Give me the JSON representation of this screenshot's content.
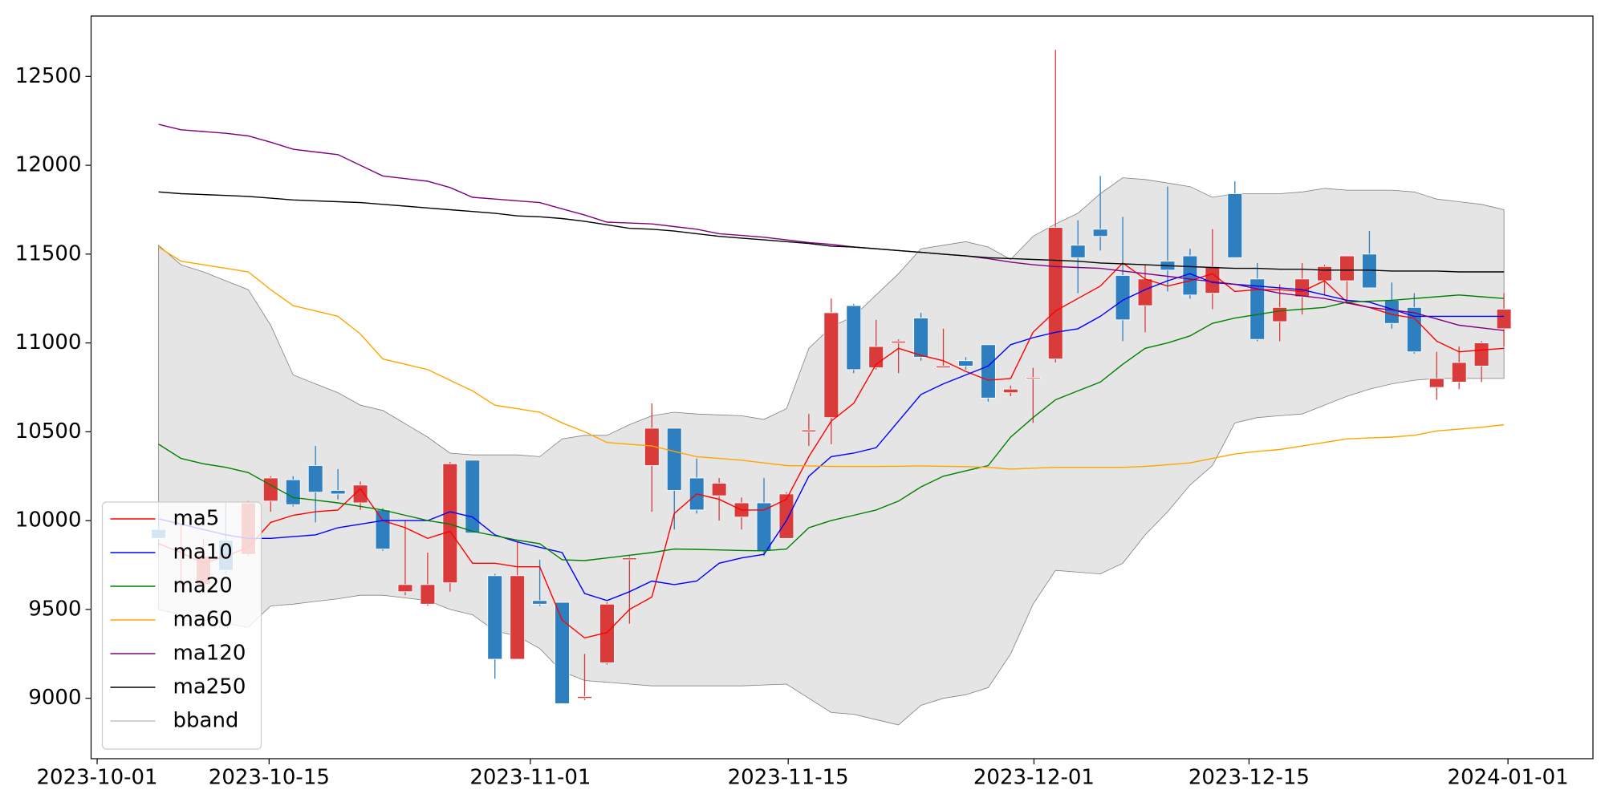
{
  "chart_data": {
    "type": "candlestick",
    "xlim": [
      -3.01,
      63.97
    ],
    "xticks": [
      {
        "value": -2.74,
        "label": "2023-10-01"
      },
      {
        "value": 4.93,
        "label": "2023-10-15"
      },
      {
        "value": 16.58,
        "label": "2023-11-01"
      },
      {
        "value": 28.08,
        "label": "2023-11-15"
      },
      {
        "value": 39.04,
        "label": "2023-12-01"
      },
      {
        "value": 48.63,
        "label": "2023-12-15"
      },
      {
        "value": 60.18,
        "label": "2024-01-01"
      }
    ],
    "ylim": [
      8660,
      12840
    ],
    "yticks": [
      9000,
      9500,
      10000,
      10500,
      11000,
      11500,
      12000,
      12500
    ],
    "up_color": "#d93a3a",
    "down_color": "#2e7fbf",
    "open": [
      9950,
      9640,
      9640,
      9890,
      9810,
      10110,
      10230,
      10310,
      10170,
      10100,
      10060,
      9600,
      9530,
      9650,
      10340,
      9690,
      9220,
      9550,
      9540,
      9000,
      9200,
      9780,
      10310,
      10520,
      10240,
      10140,
      10020,
      10100,
      9900,
      10500,
      10580,
      11210,
      10860,
      11000,
      11140,
      10860,
      10900,
      10990,
      10720,
      10800,
      10910,
      11550,
      11640,
      11380,
      11210,
      11460,
      11490,
      11280,
      11840,
      11360,
      11120,
      11260,
      11350,
      11350,
      11500,
      11240,
      11200,
      10750,
      10780,
      10870,
      11080
    ],
    "high": [
      10050,
      9980,
      9900,
      10100,
      10110,
      10250,
      10250,
      10420,
      10290,
      10220,
      10070,
      10000,
      9820,
      10330,
      10340,
      9700,
      9880,
      9780,
      9540,
      9250,
      9540,
      9800,
      10660,
      10520,
      10350,
      10240,
      10130,
      10240,
      10160,
      10600,
      11250,
      11220,
      11130,
      11020,
      11170,
      11080,
      10920,
      10990,
      10760,
      10860,
      12650,
      11690,
      11940,
      11710,
      11440,
      11880,
      11530,
      11640,
      11910,
      11450,
      11330,
      11450,
      11440,
      11490,
      11630,
      11340,
      11280,
      10950,
      10980,
      11010,
      11280
    ],
    "low": [
      9850,
      9600,
      9600,
      9700,
      9800,
      10050,
      10080,
      9990,
      10120,
      10060,
      9830,
      9580,
      9520,
      9600,
      9930,
      9110,
      9220,
      9520,
      8970,
      8990,
      9190,
      9420,
      10050,
      9950,
      10040,
      10000,
      9950,
      9800,
      9900,
      10420,
      10430,
      10830,
      10850,
      10830,
      10900,
      10860,
      10850,
      10670,
      10700,
      10550,
      10890,
      11280,
      11520,
      11010,
      11060,
      11290,
      11250,
      11190,
      11480,
      11010,
      11010,
      11160,
      11270,
      11220,
      11310,
      11080,
      10940,
      10680,
      10740,
      10780,
      10980
    ],
    "close": [
      9900,
      9660,
      9800,
      9720,
      10100,
      10240,
      10090,
      10160,
      10150,
      10200,
      9840,
      9640,
      9640,
      10320,
      9930,
      9220,
      9690,
      9530,
      8970,
      9010,
      9530,
      9790,
      10520,
      10170,
      10060,
      10210,
      10100,
      9830,
      10150,
      10510,
      11170,
      10850,
      10980,
      11010,
      10920,
      10870,
      10870,
      10690,
      10740,
      10805,
      11650,
      11480,
      11600,
      11130,
      11360,
      11410,
      11270,
      11430,
      11480,
      11020,
      11200,
      11360,
      11430,
      11490,
      11310,
      11110,
      10950,
      10800,
      10890,
      11000,
      11190
    ],
    "lines": [
      {
        "name": "ma5",
        "color": "#ff0000",
        "values": [
          9870,
          9820,
          9760,
          9800,
          9850,
          9990,
          10030,
          10050,
          10060,
          10180,
          10000,
          9960,
          9900,
          9940,
          9760,
          9760,
          9740,
          9740,
          9440,
          9340,
          9370,
          9500,
          9570,
          10040,
          10150,
          10120,
          10060,
          10060,
          10120,
          10360,
          10560,
          10660,
          10880,
          10970,
          10930,
          10900,
          10840,
          10790,
          10800,
          11060,
          11180,
          11250,
          11320,
          11450,
          11360,
          11320,
          11350,
          11390,
          11290,
          11300,
          11300,
          11290,
          11350,
          11230,
          11200,
          11160,
          11140,
          11010,
          10950,
          10960,
          10970
        ]
      },
      {
        "name": "ma10",
        "color": "#0000ff",
        "values": [
          10010,
          9980,
          9950,
          9920,
          9900,
          9900,
          9910,
          9920,
          9960,
          9980,
          10000,
          10000,
          10000,
          10050,
          10020,
          9920,
          9880,
          9850,
          9820,
          9590,
          9550,
          9600,
          9660,
          9640,
          9660,
          9760,
          9790,
          9810,
          10000,
          10250,
          10360,
          10380,
          10410,
          10560,
          10710,
          10770,
          10820,
          10870,
          10990,
          11030,
          11060,
          11080,
          11150,
          11240,
          11300,
          11350,
          11390,
          11340,
          11330,
          11320,
          11310,
          11300,
          11270,
          11240,
          11230,
          11190,
          11150,
          11150,
          11150,
          11150,
          11150
        ]
      },
      {
        "name": "ma20",
        "color": "#008000",
        "values": [
          10430,
          10350,
          10320,
          10300,
          10270,
          10200,
          10130,
          10115,
          10100,
          10080,
          10060,
          10030,
          10000,
          9980,
          9940,
          9915,
          9890,
          9870,
          9780,
          9775,
          9790,
          9805,
          9820,
          9840,
          9838,
          9835,
          9832,
          9830,
          9840,
          9960,
          10000,
          10030,
          10060,
          10110,
          10190,
          10250,
          10280,
          10310,
          10470,
          10580,
          10680,
          10730,
          10780,
          10880,
          10970,
          11000,
          11040,
          11110,
          11140,
          11160,
          11180,
          11190,
          11200,
          11230,
          11235,
          11240,
          11250,
          11260,
          11270,
          11260,
          11250
        ]
      },
      {
        "name": "ma60",
        "color": "#ffa500",
        "values": [
          11540,
          11460,
          11440,
          11420,
          11400,
          11300,
          11210,
          11180,
          11150,
          11050,
          10910,
          10880,
          10850,
          10790,
          10730,
          10650,
          10630,
          10610,
          10550,
          10500,
          10440,
          10430,
          10420,
          10390,
          10360,
          10350,
          10340,
          10325,
          10310,
          10308,
          10305,
          10305,
          10305,
          10306,
          10308,
          10306,
          10304,
          10300,
          10290,
          10295,
          10300,
          10300,
          10300,
          10300,
          10305,
          10315,
          10325,
          10350,
          10375,
          10390,
          10400,
          10420,
          10440,
          10460,
          10465,
          10470,
          10480,
          10505,
          10515,
          10525,
          10540
        ]
      },
      {
        "name": "ma120",
        "color": "#800080",
        "values": [
          12230,
          12200,
          12190,
          12180,
          12165,
          12130,
          12090,
          12075,
          12060,
          12000,
          11940,
          11925,
          11910,
          11875,
          11820,
          11810,
          11800,
          11790,
          11755,
          11720,
          11680,
          11675,
          11670,
          11655,
          11640,
          11615,
          11605,
          11595,
          11580,
          11565,
          11555,
          11540,
          11530,
          11520,
          11510,
          11500,
          11490,
          11475,
          11455,
          11440,
          11430,
          11425,
          11420,
          11405,
          11390,
          11375,
          11360,
          11345,
          11330,
          11305,
          11280,
          11265,
          11250,
          11225,
          11200,
          11185,
          11170,
          11135,
          11100,
          11085,
          11070
        ]
      },
      {
        "name": "ma250",
        "color": "#000000",
        "values": [
          11850,
          11840,
          11835,
          11830,
          11825,
          11815,
          11805,
          11800,
          11795,
          11790,
          11780,
          11770,
          11760,
          11750,
          11740,
          11730,
          11715,
          11710,
          11700,
          11685,
          11665,
          11645,
          11640,
          11630,
          11615,
          11600,
          11590,
          11580,
          11570,
          11560,
          11545,
          11540,
          11530,
          11520,
          11510,
          11500,
          11490,
          11480,
          11475,
          11470,
          11465,
          11460,
          11450,
          11445,
          11440,
          11435,
          11430,
          11425,
          11420,
          11420,
          11415,
          11415,
          11410,
          11410,
          11410,
          11405,
          11405,
          11405,
          11400,
          11400,
          11400
        ]
      }
    ],
    "bband": {
      "name": "bband",
      "color": "#808080",
      "fill": "#e5e5e5",
      "upper": [
        11550,
        11440,
        11400,
        11350,
        11300,
        11100,
        10820,
        10770,
        10720,
        10650,
        10620,
        10545,
        10470,
        10380,
        10370,
        10370,
        10370,
        10360,
        10460,
        10480,
        10480,
        10540,
        10590,
        10610,
        10600,
        10595,
        10590,
        10570,
        10630,
        10970,
        11090,
        11150,
        11270,
        11390,
        11530,
        11550,
        11570,
        11540,
        11470,
        11600,
        11670,
        11730,
        11840,
        11930,
        11920,
        11900,
        11880,
        11820,
        11840,
        11840,
        11840,
        11850,
        11870,
        11860,
        11860,
        11860,
        11850,
        11810,
        11795,
        11780,
        11750
      ],
      "lower": [
        9500,
        9470,
        9440,
        9420,
        9400,
        9520,
        9530,
        9545,
        9560,
        9580,
        9580,
        9565,
        9550,
        9500,
        9470,
        9380,
        9350,
        9280,
        9150,
        9100,
        9090,
        9080,
        9070,
        9070,
        9070,
        9070,
        9070,
        9075,
        9080,
        9000,
        8920,
        8910,
        8880,
        8850,
        8960,
        9000,
        9020,
        9060,
        9250,
        9530,
        9720,
        9710,
        9700,
        9760,
        9920,
        10050,
        10200,
        10310,
        10550,
        10580,
        10590,
        10600,
        10650,
        10700,
        10740,
        10770,
        10790,
        10800,
        10800,
        10800,
        10800
      ]
    },
    "legend": "lower left"
  }
}
